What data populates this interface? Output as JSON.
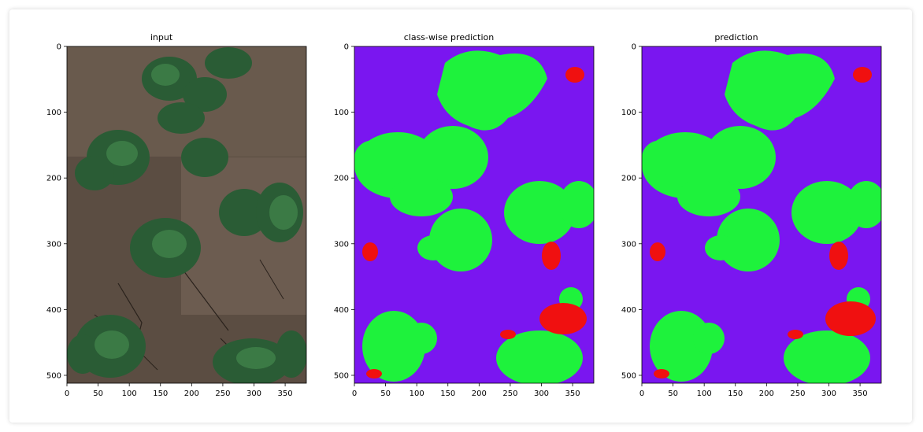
{
  "panels": [
    {
      "id": "input",
      "title": "input",
      "content": "photo",
      "x_ticks": [
        "0",
        "50",
        "100",
        "150",
        "200",
        "250",
        "300",
        "350"
      ],
      "y_ticks": [
        "0",
        "100",
        "200",
        "300",
        "400",
        "500"
      ]
    },
    {
      "id": "classwise",
      "title": "class-wise prediction",
      "content": "mask",
      "x_ticks": [
        "0",
        "50",
        "100",
        "150",
        "200",
        "250",
        "300",
        "350"
      ],
      "y_ticks": [
        "0",
        "100",
        "200",
        "300",
        "400",
        "500"
      ]
    },
    {
      "id": "prediction",
      "title": "prediction",
      "content": "mask",
      "x_ticks": [
        "0",
        "50",
        "100",
        "150",
        "200",
        "250",
        "300",
        "350"
      ],
      "y_ticks": [
        "0",
        "100",
        "200",
        "300",
        "400",
        "500"
      ]
    }
  ],
  "colors": {
    "background_class": "#7a16f0",
    "plant_class": "#1ef23c",
    "weed_class": "#f01010",
    "soil_dark": "#4a3e36",
    "soil_light": "#7a6a5c",
    "leaf_dark": "#1f4d2b",
    "leaf_light": "#3b7a45"
  }
}
